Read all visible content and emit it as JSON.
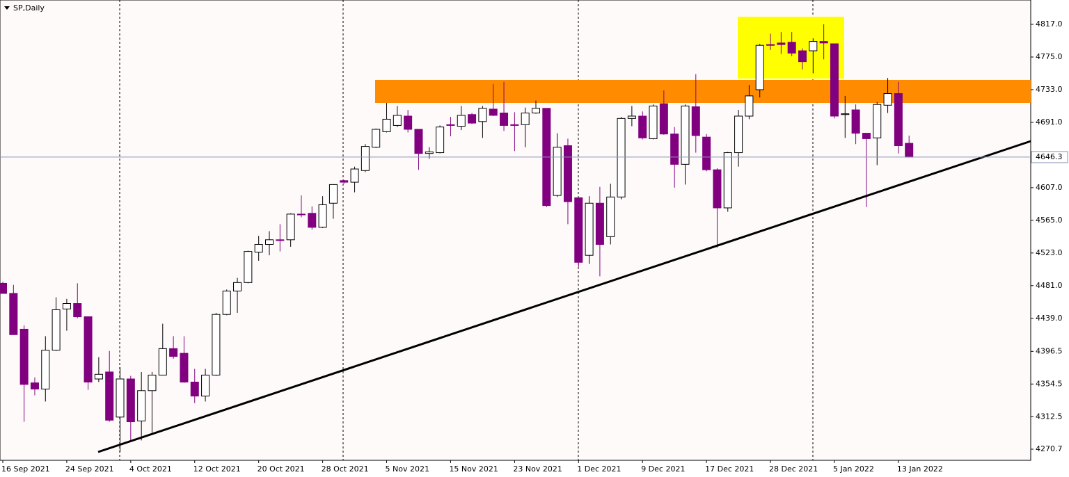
{
  "chart_data": {
    "type": "candlestick",
    "title": "SP,Daily",
    "categories": [
      "16 Sep 2021",
      null,
      null,
      null,
      null,
      null,
      "24 Sep 2021",
      null,
      null,
      null,
      null,
      null,
      "4 Oct 2021",
      null,
      null,
      null,
      null,
      null,
      "12 Oct 2021",
      null,
      null,
      null,
      null,
      null,
      "20 Oct 2021",
      null,
      null,
      null,
      null,
      null,
      "28 Oct 2021",
      null,
      null,
      null,
      null,
      null,
      "5 Nov 2021",
      null,
      null,
      null,
      null,
      null,
      "15 Nov 2021",
      null,
      null,
      null,
      null,
      null,
      "23 Nov 2021",
      null,
      null,
      null,
      null,
      null,
      "1 Dec 2021",
      null,
      null,
      null,
      null,
      null,
      "9 Dec 2021",
      null,
      null,
      null,
      null,
      null,
      "17 Dec 2021",
      null,
      null,
      null,
      null,
      null,
      "28 Dec 2021",
      null,
      null,
      null,
      null,
      null,
      "5 Jan 2022",
      null,
      null,
      null,
      null,
      null,
      "13 Jan 2022",
      null
    ],
    "open": [
      4484,
      4471,
      4425,
      4356,
      4348,
      4398,
      4451,
      4458,
      4441,
      4361,
      4370,
      4312,
      4361,
      4307,
      4346,
      4366,
      4400,
      4394,
      4357,
      4339,
      4366,
      4444,
      4474,
      4485,
      4524,
      4534,
      4540,
      4540,
      4573,
      4574,
      4556,
      4587,
      4616,
      4614,
      4629,
      4659,
      4679,
      4687,
      4699,
      4682,
      4651,
      4652,
      4688,
      4686,
      4701,
      4692,
      4708,
      4703,
      4688,
      4688,
      4703,
      4709,
      4597,
      4661,
      4594,
      4520,
      4587,
      4544,
      4595,
      4696,
      4699,
      4670,
      4715,
      4676,
      4637,
      4711,
      4672,
      4630,
      4581,
      4652,
      4699,
      4733,
      4791,
      4793,
      4794,
      4783,
      4783,
      4795,
      4792,
      4701,
      4707,
      4677,
      4671,
      4713,
      4728,
      4664
    ],
    "high": [
      4486,
      4482,
      4430,
      4363,
      4416,
      4466,
      4464,
      4484,
      4441,
      4389,
      4397,
      4376,
      4365,
      4370,
      4370,
      4432,
      4416,
      4416,
      4374,
      4374,
      4446,
      4476,
      4491,
      4526,
      4545,
      4551,
      4560,
      4574,
      4597,
      4583,
      4596,
      4611,
      4617,
      4634,
      4663,
      4683,
      4716,
      4712,
      4707,
      4682,
      4659,
      4687,
      4698,
      4712,
      4703,
      4712,
      4740,
      4743,
      4704,
      4710,
      4719,
      4709,
      4677,
      4670,
      4594,
      4596,
      4608,
      4612,
      4698,
      4712,
      4705,
      4714,
      4732,
      4685,
      4714,
      4753,
      4676,
      4632,
      4653,
      4707,
      4739,
      4792,
      4805,
      4807,
      4807,
      4786,
      4799,
      4817,
      4792,
      4725,
      4714,
      4677,
      4717,
      4748,
      4743,
      4674
    ],
    "low": [
      4471,
      4418,
      4306,
      4340,
      4332,
      4397,
      4423,
      4439,
      4347,
      4357,
      4306,
      4267,
      4280,
      4282,
      4292,
      4366,
      4387,
      4356,
      4330,
      4332,
      4365,
      4443,
      4446,
      4484,
      4513,
      4520,
      4525,
      4531,
      4569,
      4553,
      4555,
      4567,
      4612,
      4601,
      4627,
      4658,
      4678,
      4685,
      4678,
      4630,
      4644,
      4651,
      4673,
      4681,
      4689,
      4671,
      4699,
      4680,
      4654,
      4659,
      4702,
      4582,
      4595,
      4560,
      4505,
      4509,
      4493,
      4534,
      4592,
      4686,
      4669,
      4669,
      4675,
      4607,
      4611,
      4652,
      4628,
      4530,
      4576,
      4634,
      4695,
      4723,
      4784,
      4779,
      4776,
      4759,
      4754,
      4772,
      4696,
      4671,
      4663,
      4582,
      4636,
      4703,
      4651,
      4646
    ],
    "close": [
      4471,
      4418,
      4354,
      4348,
      4398,
      4450,
      4458,
      4441,
      4357,
      4367,
      4308,
      4361,
      4306,
      4346,
      4366,
      4400,
      4390,
      4357,
      4339,
      4366,
      4444,
      4474,
      4485,
      4525,
      4534,
      4540,
      4539,
      4573,
      4572,
      4556,
      4585,
      4611,
      4614,
      4631,
      4660,
      4682,
      4695,
      4700,
      4682,
      4651,
      4653,
      4685,
      4687,
      4700,
      4690,
      4709,
      4700,
      4687,
      4687,
      4703,
      4709,
      4584,
      4659,
      4589,
      4511,
      4587,
      4534,
      4595,
      4696,
      4699,
      4671,
      4712,
      4676,
      4637,
      4712,
      4674,
      4630,
      4581,
      4652,
      4699,
      4725,
      4790,
      4790,
      4791,
      4780,
      4769,
      4795,
      4793,
      4699,
      4702,
      4677,
      4670,
      4714,
      4728,
      4661,
      4646.3
    ],
    "up_color": "#ffffff",
    "down_color": "#800080",
    "current_price": 4646.3,
    "ylim": [
      4256.4,
      4848.3
    ],
    "yticks": [
      {
        "value": 4817,
        "label": "4817.0"
      },
      {
        "value": 4775,
        "label": "4775.0"
      },
      {
        "value": 4733,
        "label": "4733.0"
      },
      {
        "value": 4691,
        "label": "4691.0"
      },
      {
        "value": 4607,
        "label": "4607.0"
      },
      {
        "value": 4565,
        "label": "4565.0"
      },
      {
        "value": 4523,
        "label": "4523.0"
      },
      {
        "value": 4481,
        "label": "4481.0"
      },
      {
        "value": 4439,
        "label": "4439.0"
      },
      4396.5,
      4354.5,
      4312.5,
      4270.7
    ]
  }
}
